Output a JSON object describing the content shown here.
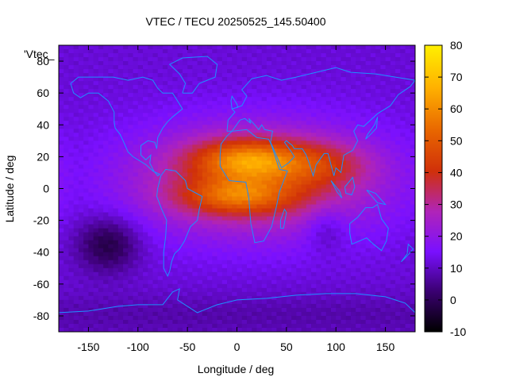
{
  "chart_data": {
    "type": "heatmap",
    "title": "VTEC / TECU 20250525_145.50400",
    "xlabel": "Longitude / deg",
    "ylabel": "Latitude / deg",
    "legend_label": "'Vtec_",
    "xlim": [
      -180,
      180
    ],
    "ylim": [
      -90,
      90
    ],
    "clim": [
      -10,
      80
    ],
    "x_ticks": [
      -150,
      -100,
      -50,
      0,
      50,
      100,
      150
    ],
    "y_ticks": [
      -80,
      -60,
      -40,
      -20,
      0,
      20,
      40,
      60,
      80
    ],
    "c_ticks": [
      -10,
      0,
      10,
      20,
      30,
      40,
      50,
      60,
      70,
      80
    ],
    "colormap": [
      "#000000",
      "#3a0070",
      "#7a10ff",
      "#b024b8",
      "#d0300a",
      "#e86500",
      "#ffb000",
      "#fff000"
    ],
    "background_level": 12,
    "features": [
      {
        "name": "equatorial-anomaly-band",
        "lon": 20,
        "lat": 5,
        "lon_sigma": 90,
        "lat_sigma": 25,
        "amplitude": 26
      },
      {
        "name": "north-crest",
        "lon": 10,
        "lat": 18,
        "lon_sigma": 38,
        "lat_sigma": 9,
        "amplitude": 30
      },
      {
        "name": "south-crest",
        "lon": 0,
        "lat": -5,
        "lon_sigma": 40,
        "lat_sigma": 8,
        "amplitude": 24
      },
      {
        "name": "asian-extension",
        "lon": 85,
        "lat": 15,
        "lon_sigma": 35,
        "lat_sigma": 10,
        "amplitude": 14
      },
      {
        "name": "south-pacific-trough",
        "lon": -130,
        "lat": -35,
        "lon_sigma": 22,
        "lat_sigma": 12,
        "amplitude": -15
      },
      {
        "name": "indian-ocean-dip",
        "lon": 90,
        "lat": -25,
        "lon_sigma": 15,
        "lat_sigma": 10,
        "amplitude": -8
      },
      {
        "name": "polar-low-south",
        "lon": 0,
        "lat": -80,
        "lon_sigma": 400,
        "lat_sigma": 10,
        "amplitude": -4
      }
    ]
  },
  "colors": {
    "coastline": "#1e90ff",
    "frame": "#000000"
  }
}
